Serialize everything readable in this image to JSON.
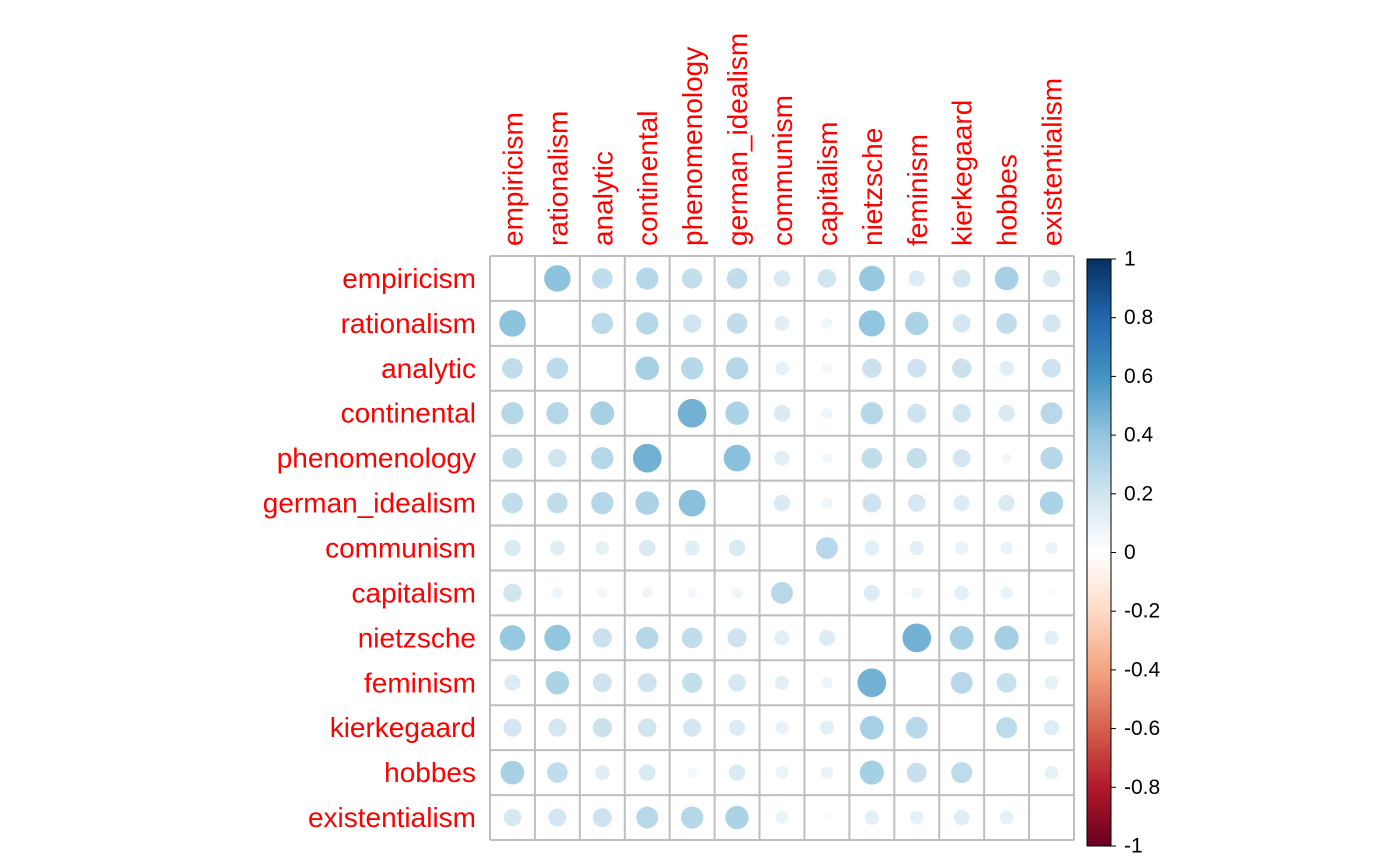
{
  "chart_data": {
    "type": "heatmap",
    "subtype": "correlation-circle-matrix",
    "title": "",
    "variables": [
      "empiricism",
      "rationalism",
      "analytic",
      "continental",
      "phenomenology",
      "german_idealism",
      "communism",
      "capitalism",
      "nietzsche",
      "feminism",
      "kierkegaard",
      "hobbes",
      "existentialism"
    ],
    "values": [
      [
        null,
        0.41,
        0.25,
        0.29,
        0.24,
        0.25,
        0.16,
        0.2,
        0.38,
        0.15,
        0.19,
        0.33,
        0.18
      ],
      [
        0.41,
        null,
        0.27,
        0.29,
        0.2,
        0.25,
        0.13,
        0.07,
        0.4,
        0.32,
        0.19,
        0.25,
        0.19
      ],
      [
        0.25,
        0.27,
        null,
        0.33,
        0.29,
        0.29,
        0.11,
        0.06,
        0.22,
        0.21,
        0.22,
        0.13,
        0.21
      ],
      [
        0.29,
        0.29,
        0.33,
        null,
        0.48,
        0.32,
        0.16,
        0.07,
        0.29,
        0.21,
        0.2,
        0.16,
        0.28
      ],
      [
        0.24,
        0.2,
        0.29,
        0.48,
        null,
        0.42,
        0.13,
        0.06,
        0.25,
        0.24,
        0.19,
        0.06,
        0.29
      ],
      [
        0.25,
        0.25,
        0.29,
        0.32,
        0.42,
        null,
        0.16,
        0.07,
        0.21,
        0.18,
        0.15,
        0.16,
        0.32
      ],
      [
        0.16,
        0.13,
        0.11,
        0.16,
        0.13,
        0.16,
        null,
        0.28,
        0.13,
        0.12,
        0.1,
        0.09,
        0.09
      ],
      [
        0.2,
        0.07,
        0.06,
        0.07,
        0.06,
        0.07,
        0.28,
        null,
        0.15,
        0.08,
        0.12,
        0.09,
        0.03
      ],
      [
        0.38,
        0.4,
        0.22,
        0.29,
        0.25,
        0.21,
        0.13,
        0.15,
        null,
        0.48,
        0.33,
        0.34,
        0.12
      ],
      [
        0.15,
        0.32,
        0.21,
        0.21,
        0.24,
        0.18,
        0.12,
        0.08,
        0.48,
        null,
        0.28,
        0.23,
        0.11
      ],
      [
        0.19,
        0.19,
        0.22,
        0.2,
        0.19,
        0.15,
        0.1,
        0.12,
        0.33,
        0.28,
        null,
        0.26,
        0.14
      ],
      [
        0.33,
        0.25,
        0.13,
        0.16,
        0.06,
        0.16,
        0.09,
        0.09,
        0.34,
        0.23,
        0.26,
        null,
        0.11
      ],
      [
        0.18,
        0.19,
        0.21,
        0.28,
        0.29,
        0.32,
        0.09,
        0.03,
        0.12,
        0.11,
        0.14,
        0.11,
        null
      ]
    ],
    "diagonal": "blank",
    "color_scale": {
      "min": -1,
      "max": 1,
      "ticks": [
        "1",
        "0.8",
        "0.6",
        "0.4",
        "0.2",
        "0",
        "-0.2",
        "-0.4",
        "-0.6",
        "-0.8",
        "-1"
      ],
      "stops": [
        {
          "value": -1.0,
          "color": "#67001F"
        },
        {
          "value": -0.8,
          "color": "#B2182B"
        },
        {
          "value": -0.6,
          "color": "#D6604D"
        },
        {
          "value": -0.4,
          "color": "#F4A582"
        },
        {
          "value": -0.2,
          "color": "#FDDBC7"
        },
        {
          "value": 0.0,
          "color": "#FFFFFF"
        },
        {
          "value": 0.2,
          "color": "#D1E5F0"
        },
        {
          "value": 0.4,
          "color": "#92C5DE"
        },
        {
          "value": 0.6,
          "color": "#4393C3"
        },
        {
          "value": 0.8,
          "color": "#2166AC"
        },
        {
          "value": 1.0,
          "color": "#053061"
        }
      ]
    },
    "legend_placement": "right",
    "grid": true,
    "label_color": "#FF0000",
    "grid_color": "#BEBEBE"
  }
}
